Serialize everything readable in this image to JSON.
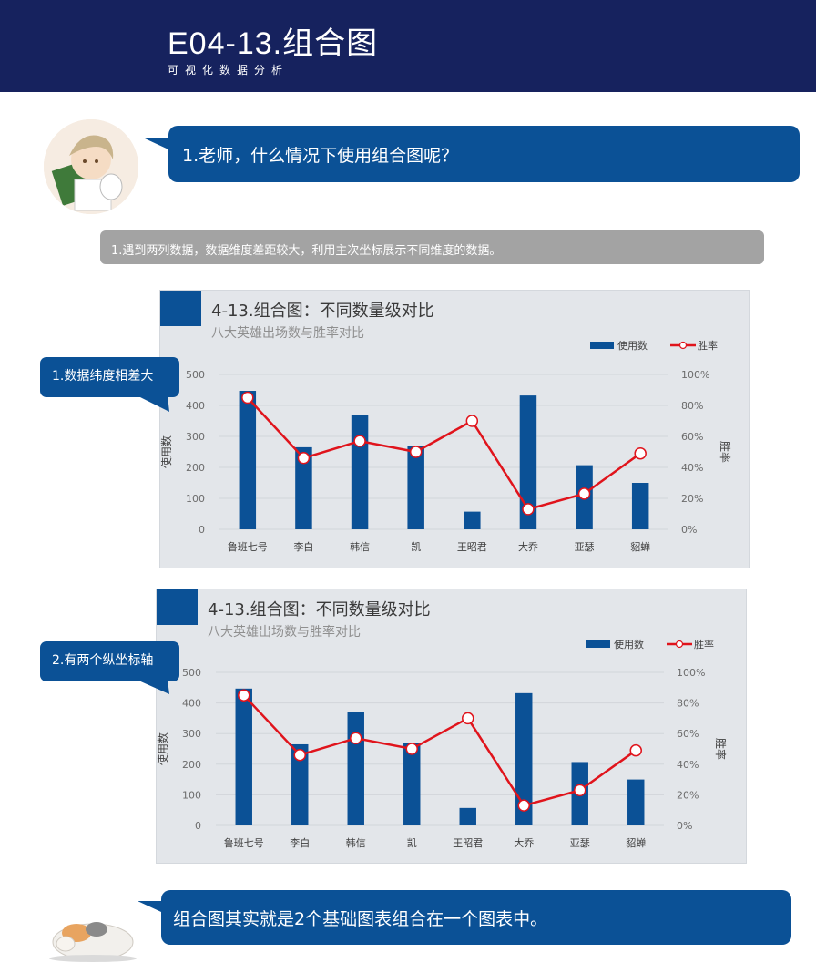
{
  "header": {
    "title": "E04-13.组合图",
    "subtitle": "可视化数据分析"
  },
  "question": "1.老师，什么情况下使用组合图呢？",
  "answer": "1.遇到两列数据，数据维度差距较大，利用主次坐标展示不同维度的数据。",
  "tags": {
    "tag1": "1.数据纬度相差大",
    "tag2": "2.有两个纵坐标轴"
  },
  "conclusion": "组合图其实就是2个基础图表组合在一个图表中。",
  "colors": {
    "accent": "#0b5196",
    "header": "#16225e",
    "line": "#e0141c",
    "card": "#e3e6ea"
  },
  "chart_data": [
    {
      "type": "bar+line",
      "title": "4-13.组合图：不同数量级对比",
      "subtitle": "八大英雄出场数与胜率对比",
      "categories": [
        "鲁班七号",
        "李白",
        "韩信",
        "凯",
        "王昭君",
        "大乔",
        "亚瑟",
        "貂蝉"
      ],
      "series": [
        {
          "name": "使用数",
          "type": "bar",
          "axis": "left",
          "values": [
            447,
            265,
            370,
            268,
            57,
            432,
            207,
            150
          ]
        },
        {
          "name": "胜率",
          "type": "line",
          "axis": "right",
          "values": [
            0.85,
            0.46,
            0.57,
            0.5,
            0.7,
            0.13,
            0.23,
            0.49
          ]
        }
      ],
      "ylabel": "使用数",
      "y2label": "胜率",
      "ylim": [
        0,
        500
      ],
      "y2lim": [
        0,
        1
      ],
      "yticks": [
        "0",
        "100",
        "200",
        "300",
        "400",
        "500"
      ],
      "y2ticks": [
        "0%",
        "20%",
        "40%",
        "60%",
        "80%",
        "100%"
      ],
      "legend": "top-right"
    },
    {
      "type": "bar+line",
      "title": "4-13.组合图：不同数量级对比",
      "subtitle": "八大英雄出场数与胜率对比",
      "categories": [
        "鲁班七号",
        "李白",
        "韩信",
        "凯",
        "王昭君",
        "大乔",
        "亚瑟",
        "貂蝉"
      ],
      "series": [
        {
          "name": "使用数",
          "type": "bar",
          "axis": "left",
          "values": [
            447,
            265,
            370,
            268,
            57,
            432,
            207,
            150
          ]
        },
        {
          "name": "胜率",
          "type": "line",
          "axis": "right",
          "values": [
            0.85,
            0.46,
            0.57,
            0.5,
            0.7,
            0.13,
            0.23,
            0.49
          ]
        }
      ],
      "ylabel": "使用数",
      "y2label": "胜率",
      "ylim": [
        0,
        500
      ],
      "y2lim": [
        0,
        1
      ],
      "yticks": [
        "0",
        "100",
        "200",
        "300",
        "400",
        "500"
      ],
      "y2ticks": [
        "0%",
        "20%",
        "40%",
        "60%",
        "80%",
        "100%"
      ],
      "legend": "top-right"
    }
  ]
}
